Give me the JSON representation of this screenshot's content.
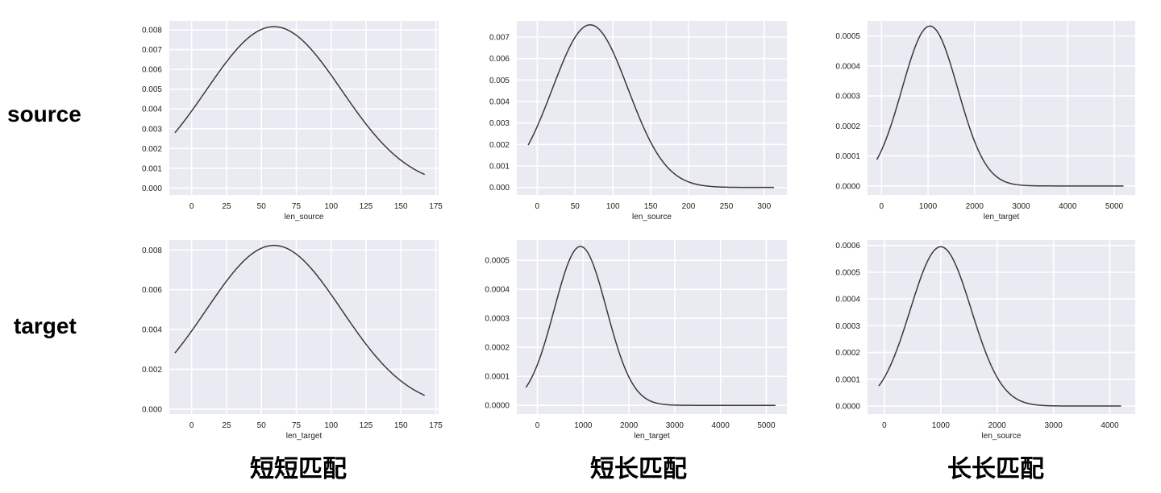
{
  "row_labels": {
    "top": "source",
    "bottom": "target"
  },
  "column_labels": [
    "短短匹配",
    "短长匹配",
    "长长匹配"
  ],
  "colors": {
    "plot_background": "#EAEAF2",
    "grid": "#FFFFFF",
    "line": "#3A3A3A"
  },
  "chart_data": [
    {
      "type": "line",
      "xlabel": "len_source",
      "xlim": [
        -16,
        177
      ],
      "ylim": [
        -0.00035,
        0.00845
      ],
      "xticks": [
        0,
        25,
        50,
        75,
        100,
        125,
        150,
        175
      ],
      "yticks": [
        0.0,
        0.001,
        0.002,
        0.003,
        0.004,
        0.005,
        0.006,
        0.007,
        0.008
      ],
      "ytick_decimals": 3,
      "curve": {
        "x_start": -12,
        "x_end": 167,
        "peak_x": 59,
        "peak_y": 0.00816,
        "sigma": 48.5
      }
    },
    {
      "type": "line",
      "xlabel": "len_source",
      "xlim": [
        -27,
        330
      ],
      "ylim": [
        -0.00035,
        0.00775
      ],
      "xticks": [
        0,
        50,
        100,
        150,
        200,
        250,
        300
      ],
      "yticks": [
        0.0,
        0.001,
        0.002,
        0.003,
        0.004,
        0.005,
        0.006,
        0.007
      ],
      "ytick_decimals": 3,
      "curve": {
        "x_start": -12,
        "x_end": 313,
        "peak_x": 70,
        "peak_y": 0.00757,
        "sigma": 50
      }
    },
    {
      "type": "line",
      "xlabel": "len_target",
      "xlim": [
        -300,
        5450
      ],
      "ylim": [
        -3e-05,
        0.00055
      ],
      "xticks": [
        0,
        1000,
        2000,
        3000,
        4000,
        5000
      ],
      "yticks": [
        0.0,
        0.0001,
        0.0002,
        0.0003,
        0.0004,
        0.0005
      ],
      "ytick_decimals": 4,
      "curve": {
        "x_start": -100,
        "x_end": 5200,
        "peak_x": 1040,
        "peak_y": 0.000533,
        "sigma": 600
      }
    },
    {
      "type": "line",
      "xlabel": "len_target",
      "xlim": [
        -16,
        177
      ],
      "ylim": [
        -0.00025,
        0.0085
      ],
      "xticks": [
        0,
        25,
        50,
        75,
        100,
        125,
        150,
        175
      ],
      "yticks": [
        0.0,
        0.002,
        0.004,
        0.006,
        0.008
      ],
      "ytick_decimals": 3,
      "curve": {
        "x_start": -12,
        "x_end": 167,
        "peak_x": 59,
        "peak_y": 0.00823,
        "sigma": 48.5
      }
    },
    {
      "type": "line",
      "xlabel": "len_target",
      "xlim": [
        -450,
        5450
      ],
      "ylim": [
        -3e-05,
        0.00057
      ],
      "xticks": [
        0,
        1000,
        2000,
        3000,
        4000,
        5000
      ],
      "yticks": [
        0.0,
        0.0001,
        0.0002,
        0.0003,
        0.0004,
        0.0005
      ],
      "ytick_decimals": 4,
      "curve": {
        "x_start": -250,
        "x_end": 5200,
        "peak_x": 940,
        "peak_y": 0.000548,
        "sigma": 570
      }
    },
    {
      "type": "line",
      "xlabel": "len_source",
      "xlim": [
        -300,
        4450
      ],
      "ylim": [
        -3e-05,
        0.00062
      ],
      "xticks": [
        0,
        1000,
        2000,
        3000,
        4000
      ],
      "yticks": [
        0.0,
        0.0001,
        0.0002,
        0.0003,
        0.0004,
        0.0005,
        0.0006
      ],
      "ytick_decimals": 4,
      "curve": {
        "x_start": -100,
        "x_end": 4200,
        "peak_x": 1000,
        "peak_y": 0.000595,
        "sigma": 540
      }
    }
  ]
}
